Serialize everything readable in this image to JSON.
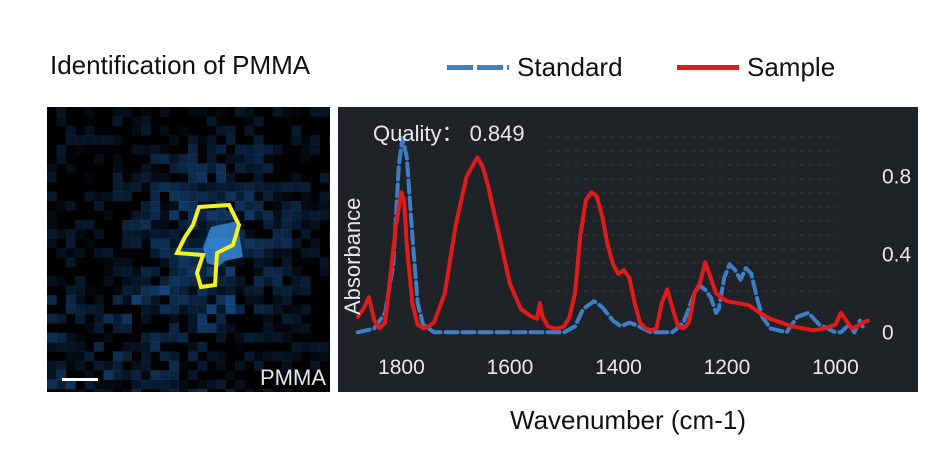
{
  "title": "Identification of PMMA",
  "legend": [
    {
      "label": "Standard",
      "color": "#3d7fc6",
      "style": "dashed"
    },
    {
      "label": "Sample",
      "color": "#e01b1b",
      "style": "solid"
    }
  ],
  "map": {
    "label": "PMMA",
    "colors": {
      "background": "#000000",
      "signal": "#1d5fa8",
      "outline": "#f5f020"
    }
  },
  "chart_data": {
    "type": "line",
    "quality_text": "Quality： 0.849",
    "ylabel": "Absorbance",
    "xlabel": "Wavenumber (cm-1)",
    "x_ticks": [
      1800,
      1600,
      1400,
      1200,
      1000
    ],
    "y_ticks": [
      0,
      0.4,
      0.8
    ],
    "xlim": [
      1880,
      940
    ],
    "ylim": [
      -0.05,
      1.03
    ],
    "x_axis_reversed": true,
    "background": "#1f2327",
    "series": [
      {
        "name": "Standard",
        "color": "#3d7fc6",
        "dash": true,
        "x": [
          1880,
          1850,
          1830,
          1815,
          1805,
          1798,
          1790,
          1780,
          1770,
          1760,
          1740,
          1700,
          1600,
          1500,
          1480,
          1465,
          1445,
          1430,
          1410,
          1395,
          1380,
          1370,
          1340,
          1300,
          1280,
          1260,
          1250,
          1240,
          1230,
          1220,
          1215,
          1205,
          1195,
          1185,
          1175,
          1165,
          1155,
          1145,
          1135,
          1120,
          1090,
          1070,
          1050,
          1030,
          1000,
          990,
          975,
          965,
          955,
          950
        ],
        "y": [
          0.0,
          0.02,
          0.1,
          0.35,
          0.85,
          1.0,
          0.9,
          0.5,
          0.15,
          0.04,
          0.0,
          0.0,
          0.0,
          0.0,
          0.03,
          0.12,
          0.16,
          0.13,
          0.06,
          0.03,
          0.05,
          0.04,
          0.0,
          0.0,
          0.05,
          0.2,
          0.24,
          0.22,
          0.18,
          0.1,
          0.12,
          0.28,
          0.35,
          0.32,
          0.27,
          0.33,
          0.3,
          0.18,
          0.08,
          0.02,
          0.0,
          0.08,
          0.1,
          0.04,
          0.0,
          0.0,
          0.04,
          0.0,
          0.06,
          0.03
        ]
      },
      {
        "name": "Sample",
        "color": "#e01b1b",
        "dash": false,
        "x": [
          1880,
          1870,
          1860,
          1850,
          1840,
          1830,
          1820,
          1810,
          1800,
          1795,
          1790,
          1780,
          1770,
          1760,
          1750,
          1740,
          1720,
          1700,
          1680,
          1660,
          1650,
          1640,
          1620,
          1600,
          1580,
          1560,
          1550,
          1545,
          1540,
          1530,
          1520,
          1510,
          1500,
          1490,
          1480,
          1470,
          1460,
          1450,
          1440,
          1430,
          1420,
          1410,
          1400,
          1390,
          1380,
          1370,
          1360,
          1350,
          1340,
          1330,
          1320,
          1310,
          1300,
          1290,
          1280,
          1270,
          1260,
          1250,
          1240,
          1230,
          1220,
          1200,
          1180,
          1160,
          1140,
          1120,
          1100,
          1080,
          1060,
          1040,
          1020,
          1000,
          990,
          980,
          970,
          960,
          950,
          940
        ],
        "y": [
          0.08,
          0.12,
          0.18,
          0.06,
          0.02,
          0.05,
          0.3,
          0.55,
          0.72,
          0.68,
          0.45,
          0.15,
          0.04,
          0.02,
          0.03,
          0.05,
          0.2,
          0.55,
          0.8,
          0.9,
          0.85,
          0.75,
          0.5,
          0.25,
          0.12,
          0.08,
          0.07,
          0.15,
          0.08,
          0.03,
          0.02,
          0.02,
          0.03,
          0.08,
          0.2,
          0.5,
          0.68,
          0.72,
          0.7,
          0.6,
          0.45,
          0.35,
          0.3,
          0.32,
          0.28,
          0.15,
          0.05,
          0.02,
          0.01,
          0.02,
          0.15,
          0.22,
          0.12,
          0.03,
          0.02,
          0.05,
          0.2,
          0.25,
          0.36,
          0.28,
          0.2,
          0.16,
          0.15,
          0.14,
          0.1,
          0.07,
          0.05,
          0.03,
          0.02,
          0.01,
          0.02,
          0.04,
          0.1,
          0.06,
          0.02,
          0.03,
          0.05,
          0.06
        ]
      }
    ]
  }
}
